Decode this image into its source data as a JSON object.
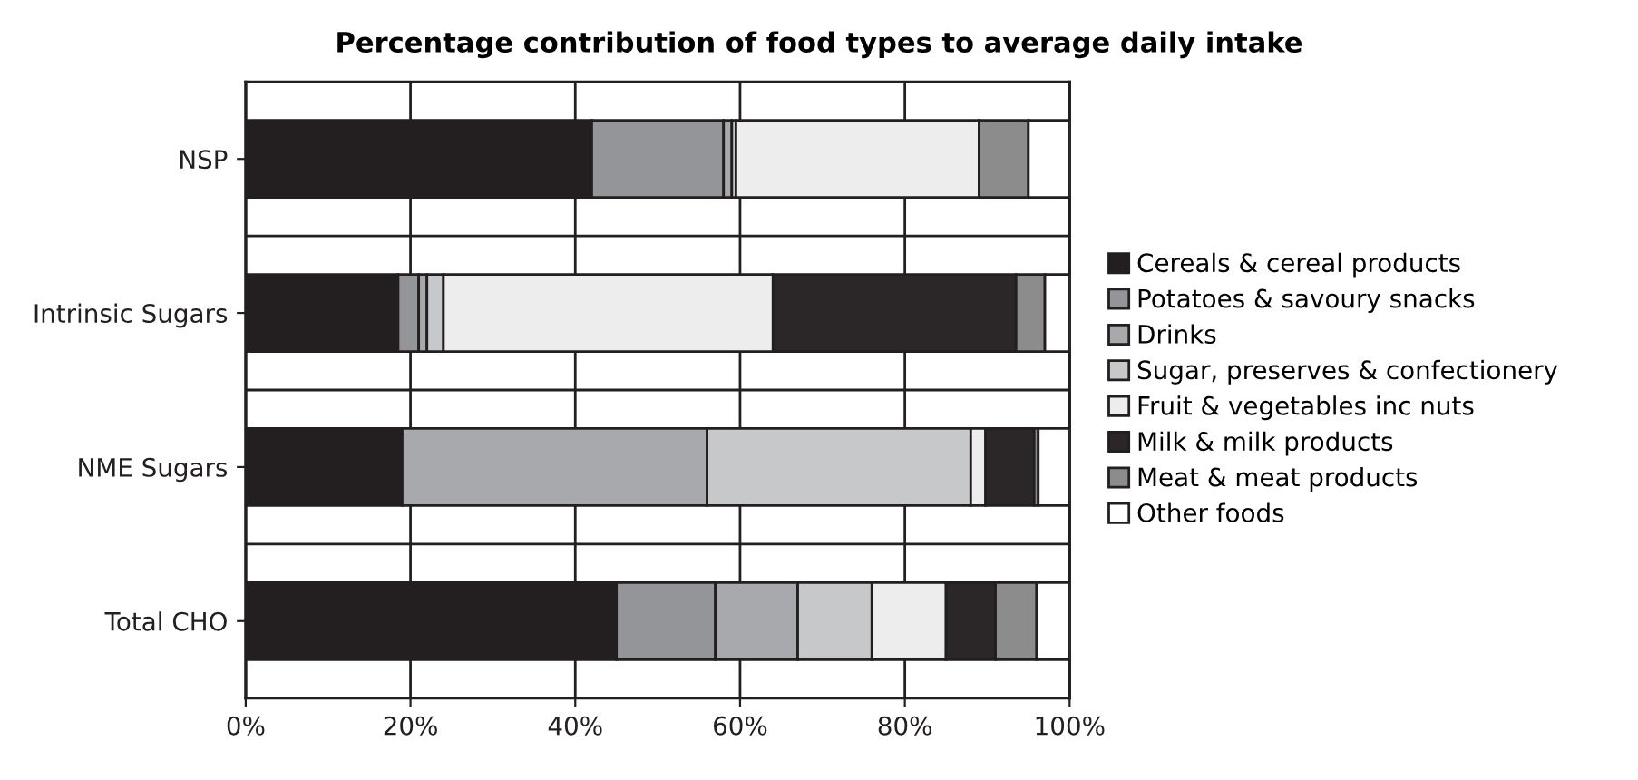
{
  "chart_data": {
    "type": "bar",
    "orientation": "horizontal",
    "stacked": true,
    "title": "Percentage contribution of food types to average daily intake",
    "categories": [
      "NSP",
      "Intrinsic Sugars",
      "NME Sugars",
      "Total CHO"
    ],
    "series": [
      {
        "name": "Cereals & cereal products",
        "color": "#231f20",
        "values": [
          42,
          18.5,
          19,
          45
        ]
      },
      {
        "name": "Potatoes & savoury snacks",
        "color": "#939598",
        "values": [
          16,
          2.5,
          0,
          12
        ]
      },
      {
        "name": "Drinks",
        "color": "#a7a9ac",
        "values": [
          1,
          1,
          37,
          10
        ]
      },
      {
        "name": "Sugar, preserves & confectionery",
        "color": "#c7c8ca",
        "values": [
          0.5,
          2,
          32,
          9
        ]
      },
      {
        "name": "Fruit & vegetables inc nuts",
        "color": "#ededed",
        "values": [
          29.5,
          40,
          1.8,
          9
        ]
      },
      {
        "name": "Milk & milk products",
        "color": "#2b2728",
        "values": [
          0,
          29.5,
          5.9,
          6
        ]
      },
      {
        "name": "Meat & meat products",
        "color": "#8c8c8c",
        "values": [
          6,
          3.5,
          0.5,
          5
        ]
      },
      {
        "name": "Other foods",
        "color": "#ffffff",
        "values": [
          5,
          3,
          3.8,
          4
        ]
      }
    ],
    "xlim": [
      0,
      100
    ],
    "xticks": [
      {
        "value": 0,
        "label": "0%"
      },
      {
        "value": 20,
        "label": "20%"
      },
      {
        "value": 40,
        "label": "40%"
      },
      {
        "value": 60,
        "label": "60%"
      },
      {
        "value": 80,
        "label": "80%"
      },
      {
        "value": 100,
        "label": "100%"
      }
    ],
    "grid": "x",
    "legend": "right"
  }
}
